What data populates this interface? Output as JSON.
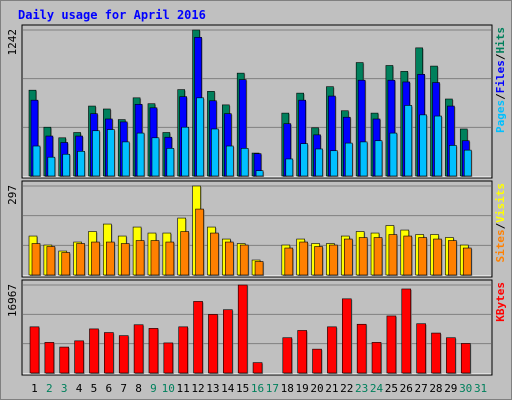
{
  "title": "Daily usage for April 2016",
  "colors": {
    "hits": "#00805c",
    "files": "#0000ff",
    "pages": "#00c0ff",
    "visits": "#ffff00",
    "sites": "#ff8000",
    "kbytes": "#ff0000",
    "weekday": "#000000",
    "weekend": "#00805c",
    "panel_bg": "#c0c0c0",
    "grid": "#808080"
  },
  "chart_data": [
    {
      "type": "bar",
      "panel": "hits-files-pages",
      "max_label": "1242",
      "ylim": [
        0,
        1242
      ],
      "legend": [
        {
          "name": "Pages",
          "color": "#00c0ff"
        },
        {
          "name": "Files",
          "color": "#0000ff"
        },
        {
          "name": "Hits",
          "color": "#00805c"
        }
      ],
      "categories": [
        "1",
        "2",
        "3",
        "4",
        "5",
        "6",
        "7",
        "8",
        "9",
        "10",
        "11",
        "12",
        "13",
        "14",
        "15",
        "16",
        "17",
        "18",
        "19",
        "20",
        "21",
        "22",
        "23",
        "24",
        "25",
        "26",
        "27",
        "28",
        "29",
        "30",
        "31"
      ],
      "series": [
        {
          "name": "Hits",
          "values": [
            730,
            415,
            325,
            370,
            595,
            570,
            480,
            665,
            615,
            370,
            735,
            1242,
            720,
            605,
            875,
            195,
            null,
            535,
            705,
            410,
            760,
            555,
            965,
            535,
            940,
            890,
            1090,
            935,
            655,
            400,
            null
          ]
        },
        {
          "name": "Files",
          "values": [
            645,
            340,
            285,
            340,
            530,
            485,
            460,
            610,
            580,
            330,
            675,
            1180,
            640,
            530,
            820,
            190,
            null,
            445,
            645,
            350,
            680,
            500,
            815,
            485,
            815,
            800,
            865,
            795,
            595,
            300,
            null
          ]
        },
        {
          "name": "Pages",
          "values": [
            255,
            160,
            185,
            210,
            385,
            395,
            290,
            365,
            325,
            235,
            415,
            665,
            400,
            255,
            235,
            45,
            null,
            145,
            275,
            230,
            215,
            280,
            290,
            300,
            365,
            600,
            520,
            510,
            260,
            220,
            null
          ]
        }
      ]
    },
    {
      "type": "bar",
      "panel": "visits-sites",
      "max_label": "297",
      "ylim": [
        0,
        297
      ],
      "legend": [
        {
          "name": "Sites",
          "color": "#ff8000"
        },
        {
          "name": "Visits",
          "color": "#ffff00"
        }
      ],
      "categories": [
        "1",
        "2",
        "3",
        "4",
        "5",
        "6",
        "7",
        "8",
        "9",
        "10",
        "11",
        "12",
        "13",
        "14",
        "15",
        "16",
        "17",
        "18",
        "19",
        "20",
        "21",
        "22",
        "23",
        "24",
        "25",
        "26",
        "27",
        "28",
        "29",
        "30",
        "31"
      ],
      "series": [
        {
          "name": "Visits",
          "values": [
            130,
            100,
            80,
            110,
            145,
            170,
            130,
            160,
            140,
            140,
            190,
            297,
            160,
            120,
            105,
            50,
            null,
            100,
            120,
            105,
            105,
            130,
            145,
            140,
            165,
            150,
            135,
            135,
            125,
            100,
            null
          ]
        },
        {
          "name": "Sites",
          "values": [
            105,
            95,
            75,
            105,
            110,
            110,
            105,
            115,
            115,
            110,
            145,
            220,
            140,
            110,
            100,
            45,
            null,
            90,
            110,
            95,
            100,
            120,
            125,
            125,
            135,
            130,
            125,
            120,
            115,
            90,
            null
          ]
        }
      ]
    },
    {
      "type": "bar",
      "panel": "kbytes",
      "max_label": "16967",
      "ylim": [
        0,
        16967
      ],
      "legend": [
        {
          "name": "KBytes",
          "color": "#ff0000"
        }
      ],
      "categories": [
        "1",
        "2",
        "3",
        "4",
        "5",
        "6",
        "7",
        "8",
        "9",
        "10",
        "11",
        "12",
        "13",
        "14",
        "15",
        "16",
        "17",
        "18",
        "19",
        "20",
        "21",
        "22",
        "23",
        "24",
        "25",
        "26",
        "27",
        "28",
        "29",
        "30",
        "31"
      ],
      "series": [
        {
          "name": "KBytes",
          "values": [
            8900,
            5900,
            5000,
            6200,
            8500,
            7800,
            7200,
            9300,
            8600,
            5800,
            8900,
            13800,
            11300,
            12200,
            16967,
            2000,
            null,
            6800,
            8200,
            4600,
            8900,
            14300,
            9400,
            5900,
            11000,
            16200,
            9500,
            7700,
            6800,
            5700,
            null
          ]
        }
      ]
    }
  ],
  "x_days": [
    {
      "label": "1",
      "weekend": false
    },
    {
      "label": "2",
      "weekend": true
    },
    {
      "label": "3",
      "weekend": true
    },
    {
      "label": "4",
      "weekend": false
    },
    {
      "label": "5",
      "weekend": false
    },
    {
      "label": "6",
      "weekend": false
    },
    {
      "label": "7",
      "weekend": false
    },
    {
      "label": "8",
      "weekend": false
    },
    {
      "label": "9",
      "weekend": true
    },
    {
      "label": "10",
      "weekend": true
    },
    {
      "label": "11",
      "weekend": false
    },
    {
      "label": "12",
      "weekend": false
    },
    {
      "label": "13",
      "weekend": false
    },
    {
      "label": "14",
      "weekend": false
    },
    {
      "label": "15",
      "weekend": false
    },
    {
      "label": "16",
      "weekend": true
    },
    {
      "label": "17",
      "weekend": true
    },
    {
      "label": "18",
      "weekend": false
    },
    {
      "label": "19",
      "weekend": false
    },
    {
      "label": "20",
      "weekend": false
    },
    {
      "label": "21",
      "weekend": false
    },
    {
      "label": "22",
      "weekend": false
    },
    {
      "label": "23",
      "weekend": true
    },
    {
      "label": "24",
      "weekend": true
    },
    {
      "label": "25",
      "weekend": false
    },
    {
      "label": "26",
      "weekend": false
    },
    {
      "label": "27",
      "weekend": false
    },
    {
      "label": "28",
      "weekend": false
    },
    {
      "label": "29",
      "weekend": false
    },
    {
      "label": "30",
      "weekend": true
    },
    {
      "label": "31",
      "weekend": true
    }
  ]
}
